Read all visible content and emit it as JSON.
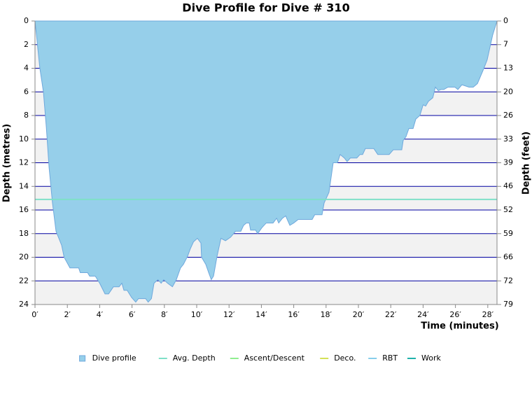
{
  "chart_data": {
    "type": "area",
    "title": "Dive Profile for Dive # 310",
    "x_label": "Time (minutes)",
    "y_label": "Depth (metres)",
    "y2_label": "Depth (feet)",
    "inverted_y": true,
    "grid": true,
    "xlim": [
      0,
      28.57
    ],
    "xticks": [
      {
        "value": 0,
        "label": "0′"
      },
      {
        "value": 2,
        "label": "2′"
      },
      {
        "value": 4,
        "label": "4′"
      },
      {
        "value": 6,
        "label": "6′"
      },
      {
        "value": 8,
        "label": "8′"
      },
      {
        "value": 10,
        "label": "10′"
      },
      {
        "value": 12,
        "label": "12′"
      },
      {
        "value": 14,
        "label": "14′"
      },
      {
        "value": 16,
        "label": "16′"
      },
      {
        "value": 18,
        "label": "18′"
      },
      {
        "value": 20,
        "label": "20′"
      },
      {
        "value": 22,
        "label": "22′"
      },
      {
        "value": 24,
        "label": "24′"
      },
      {
        "value": 26,
        "label": "26′"
      },
      {
        "value": 28,
        "label": "28′"
      }
    ],
    "ylim": [
      0,
      24
    ],
    "yticks": [
      0,
      2,
      4,
      6,
      8,
      10,
      12,
      14,
      16,
      18,
      20,
      22,
      24
    ],
    "y2lim": [
      0,
      78.74
    ],
    "y2ticks": [
      0,
      {
        "value": 6.56,
        "label": "7"
      },
      {
        "value": 13.12,
        "label": "13"
      },
      {
        "value": 19.69,
        "label": "20"
      },
      {
        "value": 26.25,
        "label": "26"
      },
      {
        "value": 32.81,
        "label": "33"
      },
      {
        "value": 39.37,
        "label": "39"
      },
      {
        "value": 45.93,
        "label": "46"
      },
      {
        "value": 52.49,
        "label": "52"
      },
      {
        "value": 59.06,
        "label": "59"
      },
      {
        "value": 65.62,
        "label": "66"
      },
      {
        "value": 72.18,
        "label": "72"
      },
      {
        "value": 78.74,
        "label": "79"
      }
    ],
    "series": [
      {
        "name": "Dive profile",
        "color": "#96cfea",
        "stroke": "#6fa8dc",
        "x": [
          0,
          0.3,
          0.52,
          0.7,
          0.87,
          1.08,
          1.3,
          1.65,
          1.8,
          2.16,
          2.7,
          2.8,
          3.25,
          3.38,
          3.73,
          4.0,
          4.33,
          4.55,
          4.85,
          5.2,
          5.37,
          5.5,
          5.7,
          5.97,
          6.23,
          6.4,
          6.84,
          7.0,
          7.2,
          7.36,
          7.6,
          7.8,
          7.96,
          8.2,
          8.5,
          8.74,
          9.0,
          9.18,
          9.44,
          9.6,
          9.8,
          10.04,
          10.26,
          10.3,
          10.56,
          10.74,
          10.9,
          11.04,
          11.26,
          11.5,
          11.78,
          12.1,
          12.4,
          12.73,
          12.9,
          13.07,
          13.25,
          13.33,
          13.64,
          13.77,
          14.03,
          14.3,
          14.72,
          14.94,
          15.07,
          15.3,
          15.5,
          15.76,
          16.0,
          16.28,
          17.14,
          17.3,
          17.75,
          17.88,
          18.18,
          18.44,
          18.7,
          18.87,
          19.13,
          19.3,
          19.5,
          19.9,
          20.1,
          20.26,
          20.43,
          20.95,
          21.2,
          21.9,
          22.16,
          22.68,
          22.77,
          22.94,
          23.12,
          23.38,
          23.55,
          23.8,
          24.0,
          24.16,
          24.33,
          24.6,
          24.76,
          24.94,
          25.1,
          25.28,
          25.54,
          25.97,
          26.15,
          26.4,
          26.84,
          27.1,
          27.36,
          27.7,
          27.96,
          28.3,
          28.57
        ],
        "values": [
          0,
          4,
          6,
          9,
          12.4,
          15.4,
          17.8,
          19,
          20,
          20.9,
          20.9,
          21.3,
          21.3,
          21.6,
          21.6,
          22.2,
          23.1,
          23.1,
          22.5,
          22.5,
          22.2,
          22.8,
          22.8,
          23.4,
          23.8,
          23.5,
          23.5,
          23.8,
          23.5,
          22.2,
          21.9,
          22.2,
          21.9,
          22.2,
          22.5,
          21.9,
          20.9,
          20.6,
          19.9,
          19.3,
          18.7,
          18.4,
          18.8,
          20.0,
          20.6,
          21.3,
          21.9,
          21.6,
          19.9,
          18.4,
          18.6,
          18.3,
          17.8,
          17.8,
          17.3,
          17.1,
          17.1,
          17.7,
          17.7,
          18.0,
          17.5,
          17.1,
          17.1,
          16.7,
          17.1,
          16.7,
          16.5,
          17.3,
          17.1,
          16.8,
          16.8,
          16.4,
          16.4,
          15.4,
          14.5,
          12.0,
          12.0,
          11.3,
          11.6,
          11.9,
          11.6,
          11.6,
          11.3,
          11.3,
          10.8,
          10.8,
          11.3,
          11.3,
          10.9,
          10.9,
          10.1,
          9.8,
          9.1,
          9.1,
          8.3,
          8.0,
          7.1,
          7.2,
          6.8,
          6.5,
          5.6,
          5.9,
          5.8,
          5.8,
          5.6,
          5.6,
          5.8,
          5.4,
          5.6,
          5.6,
          5.3,
          4.2,
          3.3,
          1.2,
          0
        ]
      },
      {
        "name": "Avg. Depth",
        "color": "#7fe0c8",
        "value": 15.1
      },
      {
        "name": "Ascent/Descent",
        "color": "#90ee90"
      },
      {
        "name": "Deco.",
        "color": "#d4e157"
      },
      {
        "name": "RBT",
        "color": "#87ceeb"
      },
      {
        "name": "Work",
        "color": "#20b2aa"
      }
    ]
  }
}
